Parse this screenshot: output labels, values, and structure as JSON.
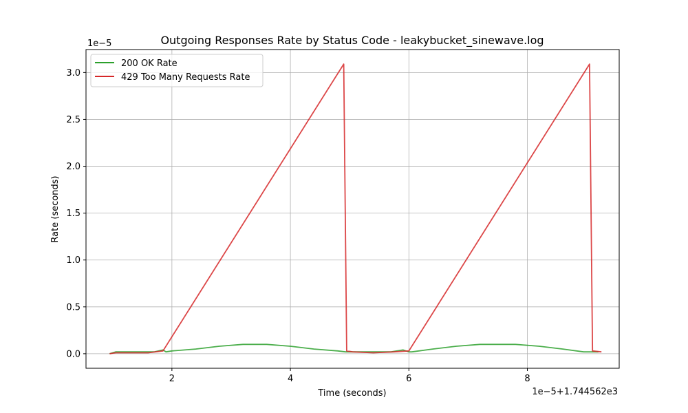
{
  "chart_data": {
    "type": "line",
    "title": "Outgoing Responses Rate by Status Code - leakybucket_sinewave.log",
    "xlabel": "Time (seconds)",
    "ylabel": "Rate (seconds)",
    "x_offset_text": "1e−5+1.744562e3",
    "y_offset_text": "1e−5",
    "xlim": [
      0.55,
      9.55
    ],
    "ylim": [
      -0.155,
      3.245
    ],
    "x_ticks": [
      2,
      4,
      6,
      8
    ],
    "x_tick_labels": [
      "2",
      "4",
      "6",
      "8"
    ],
    "y_ticks": [
      0.0,
      0.5,
      1.0,
      1.5,
      2.0,
      2.5,
      3.0
    ],
    "y_tick_labels": [
      "0.0",
      "0.5",
      "1.0",
      "1.5",
      "2.0",
      "2.5",
      "3.0"
    ],
    "grid": true,
    "legend_position": "top-left",
    "series": [
      {
        "name": "200 OK Rate",
        "color": "#2ca02c",
        "x": [
          0.95,
          1.05,
          1.15,
          1.3,
          1.5,
          1.7,
          1.85,
          1.9,
          2.0,
          2.4,
          2.8,
          3.2,
          3.4,
          3.6,
          4.0,
          4.4,
          4.8,
          4.93,
          4.97,
          5.05,
          5.15,
          5.3,
          5.5,
          5.7,
          5.9,
          6.0,
          6.05,
          6.4,
          6.8,
          7.2,
          7.5,
          7.8,
          8.2,
          8.6,
          8.95,
          9.05,
          9.1,
          9.2
        ],
        "y": [
          0.0,
          0.02,
          0.02,
          0.02,
          0.02,
          0.02,
          0.04,
          0.02,
          0.03,
          0.05,
          0.08,
          0.1,
          0.1,
          0.1,
          0.08,
          0.05,
          0.03,
          0.02,
          0.02,
          0.02,
          0.02,
          0.02,
          0.02,
          0.02,
          0.04,
          0.02,
          0.02,
          0.05,
          0.08,
          0.1,
          0.1,
          0.1,
          0.08,
          0.05,
          0.02,
          0.02,
          0.02,
          0.02
        ]
      },
      {
        "name": "429 Too Many Requests Rate",
        "color": "#d62728",
        "x": [
          0.95,
          1.05,
          1.3,
          1.6,
          1.85,
          4.9,
          4.95,
          5.05,
          5.4,
          5.75,
          6.0,
          9.05,
          9.1,
          9.25
        ],
        "y": [
          0.0,
          0.01,
          0.01,
          0.01,
          0.03,
          3.09,
          0.03,
          0.02,
          0.01,
          0.02,
          0.03,
          3.09,
          0.03,
          0.02
        ]
      }
    ]
  }
}
